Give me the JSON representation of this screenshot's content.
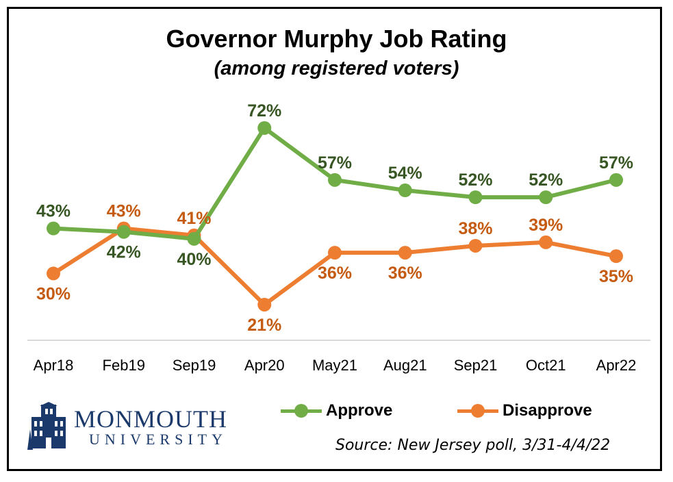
{
  "chart_data": {
    "type": "line",
    "title": "Governor Murphy Job Rating",
    "subtitle": "(among registered voters)",
    "categories": [
      "Apr18",
      "Feb19",
      "Sep19",
      "Apr20",
      "May21",
      "Aug21",
      "Sep21",
      "Oct21",
      "Apr22"
    ],
    "series": [
      {
        "name": "Approve",
        "color": "#70ad47",
        "label_color": "#375623",
        "values": [
          43,
          42,
          40,
          72,
          57,
          54,
          52,
          52,
          57
        ],
        "labels": [
          "43%",
          "42%",
          "40%",
          "72%",
          "57%",
          "54%",
          "52%",
          "52%",
          "57%"
        ]
      },
      {
        "name": "Disapprove",
        "color": "#ed7d31",
        "label_color": "#c55a11",
        "values": [
          30,
          43,
          41,
          21,
          36,
          36,
          38,
          39,
          35
        ],
        "labels": [
          "30%",
          "43%",
          "41%",
          "21%",
          "36%",
          "36%",
          "38%",
          "39%",
          "35%"
        ]
      }
    ],
    "ylim": [
      0,
      100
    ],
    "grid": false,
    "legend_position": "bottom-right"
  },
  "logo": {
    "line1": "MONMOUTH",
    "line2": "UNIVERSITY"
  },
  "source": "Source: New Jersey poll, 3/31-4/4/22"
}
